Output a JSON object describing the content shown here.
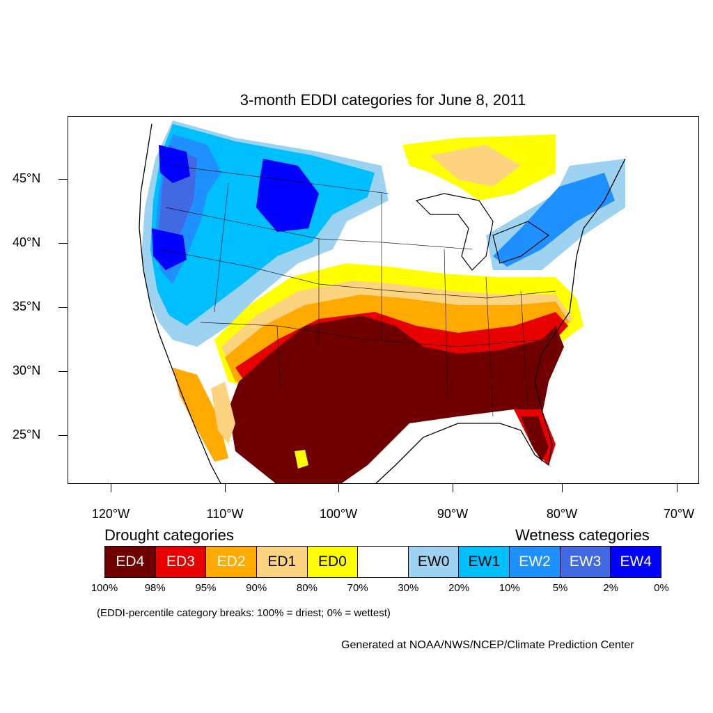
{
  "title": "3-month EDDI categories for June 8, 2011",
  "map": {
    "lat_range": [
      21,
      49.8
    ],
    "lon_range": [
      -124,
      -68.5
    ],
    "lat_ticks": [
      "45°N",
      "40°N",
      "35°N",
      "30°N",
      "25°N"
    ],
    "lon_ticks": [
      "120°W",
      "110°W",
      "100°W",
      "90°W",
      "80°W",
      "70°W"
    ],
    "region_colors": {
      "ED4": "#700000",
      "ED3": "#e60000",
      "ED2": "#ffaa00",
      "ED1": "#fcd37f",
      "ED0": "#ffff00",
      "NONE": "#ffffff",
      "EW0": "#9dd3f0",
      "EW1": "#00bfff",
      "EW2": "#1e90ff",
      "EW3": "#4169e1",
      "EW4": "#0000ff"
    }
  },
  "legend": {
    "drought_heading": "Drought categories",
    "wetness_heading": "Wetness categories",
    "categories": [
      {
        "label": "ED4",
        "color": "#700000",
        "text_color": "#ffffff"
      },
      {
        "label": "ED3",
        "color": "#e60000",
        "text_color": "#ffffff"
      },
      {
        "label": "ED2",
        "color": "#ffaa00",
        "text_color": "#ffffff"
      },
      {
        "label": "ED1",
        "color": "#fcd37f",
        "text_color": "#000000"
      },
      {
        "label": "ED0",
        "color": "#ffff00",
        "text_color": "#000000"
      },
      {
        "label": "",
        "color": "#ffffff",
        "text_color": "#000000"
      },
      {
        "label": "EW0",
        "color": "#9dd3f0",
        "text_color": "#000000"
      },
      {
        "label": "EW1",
        "color": "#00bfff",
        "text_color": "#000000"
      },
      {
        "label": "EW2",
        "color": "#1e90ff",
        "text_color": "#ffffff"
      },
      {
        "label": "EW3",
        "color": "#4169e1",
        "text_color": "#ffffff"
      },
      {
        "label": "EW4",
        "color": "#0000ff",
        "text_color": "#ffffff"
      }
    ],
    "breaks": [
      "100%",
      "98%",
      "95%",
      "90%",
      "80%",
      "70%",
      "30%",
      "20%",
      "10%",
      "5%",
      "2%",
      "0%"
    ]
  },
  "note": "(EDDI-percentile category breaks: 100% = driest; 0% = wettest)",
  "credit": "Generated at NOAA/NWS/NCEP/Climate Prediction Center"
}
